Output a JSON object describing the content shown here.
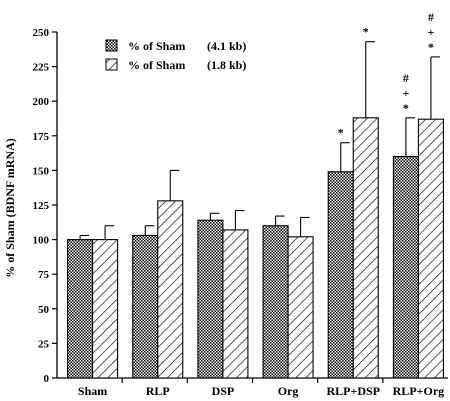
{
  "chart_data": {
    "type": "bar",
    "title": "",
    "ylabel": "% of Sham (BDNF mRNA)",
    "xlabel": "",
    "ylim": [
      0,
      250
    ],
    "yticks": [
      0,
      25,
      50,
      75,
      100,
      125,
      150,
      175,
      200,
      225,
      250
    ],
    "grid": false,
    "legend_position": "top-left",
    "categories": [
      "Sham",
      "RLP",
      "DSP",
      "Org",
      "RLP+DSP",
      "RLP+Org"
    ],
    "series": [
      {
        "name": "% of Sham",
        "size_label": "(4.1 kb)",
        "pattern": "dotted",
        "values": [
          100,
          103,
          114,
          110,
          149,
          160
        ],
        "error": [
          3,
          7,
          5,
          7,
          21,
          28
        ],
        "annotations": [
          "",
          "",
          "",
          "",
          "*",
          "*\n+\n#"
        ]
      },
      {
        "name": "% of Sham",
        "size_label": "(1.8 kb)",
        "pattern": "hatched",
        "values": [
          100,
          128,
          107,
          102,
          188,
          187
        ],
        "error": [
          10,
          22,
          14,
          14,
          55,
          45
        ],
        "annotations": [
          "",
          "",
          "",
          "",
          "*",
          "*\n+\n#"
        ]
      }
    ]
  }
}
